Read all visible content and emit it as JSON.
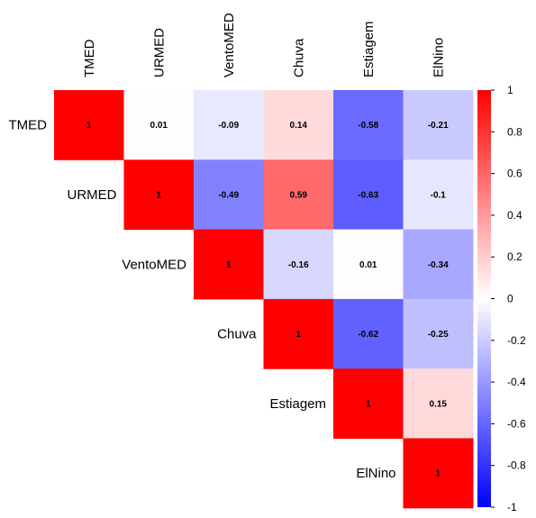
{
  "chart_data": {
    "type": "heatmap",
    "variables": [
      "TMED",
      "URMED",
      "VentoMED",
      "Chuva",
      "Estiagem",
      "ElNino"
    ],
    "matrix": [
      [
        1,
        0.01,
        -0.09,
        0.14,
        -0.58,
        -0.21
      ],
      [
        null,
        1,
        -0.49,
        0.59,
        -0.63,
        -0.1
      ],
      [
        null,
        null,
        1,
        -0.16,
        0.01,
        -0.34
      ],
      [
        null,
        null,
        null,
        1,
        -0.62,
        -0.25
      ],
      [
        null,
        null,
        null,
        null,
        1,
        0.15
      ],
      [
        null,
        null,
        null,
        null,
        null,
        1
      ]
    ],
    "layout": "upper-triangle",
    "colorscale": {
      "min": -1,
      "max": 1,
      "low_color": "#0000ff",
      "mid_color": "#ffffff",
      "high_color": "#ff0000",
      "ticks": [
        1,
        0.8,
        0.6,
        0.4,
        0.2,
        0,
        -0.2,
        -0.4,
        -0.6,
        -0.8,
        -1
      ]
    },
    "legend_position": "right"
  }
}
